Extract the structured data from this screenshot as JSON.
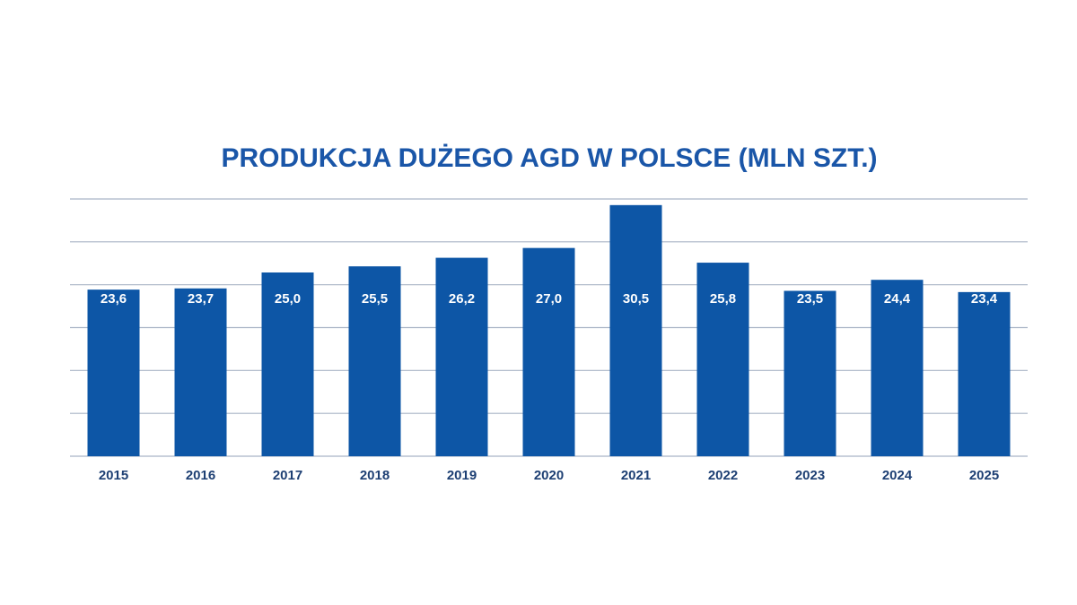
{
  "chart_data": {
    "type": "bar",
    "title": "PRODUKCJA DUŻEGO AGD W POLSCE (MLN SZT.)",
    "categories": [
      "2015",
      "2016",
      "2017",
      "2018",
      "2019",
      "2020",
      "2021",
      "2022",
      "2023",
      "2024",
      "2025"
    ],
    "values": [
      23.6,
      23.7,
      25.0,
      25.5,
      26.2,
      27.0,
      30.5,
      25.8,
      23.5,
      24.4,
      23.4
    ],
    "value_labels": [
      "23,6",
      "23,7",
      "25,0",
      "25,5",
      "26,2",
      "27,0",
      "30,5",
      "25,8",
      "23,5",
      "24,4",
      "23,4"
    ],
    "color": "#0d56a6",
    "ylim": [
      10,
      31
    ],
    "yticks": [
      10,
      13.5,
      17,
      20.5,
      24,
      27.5,
      31
    ],
    "grid": true
  }
}
